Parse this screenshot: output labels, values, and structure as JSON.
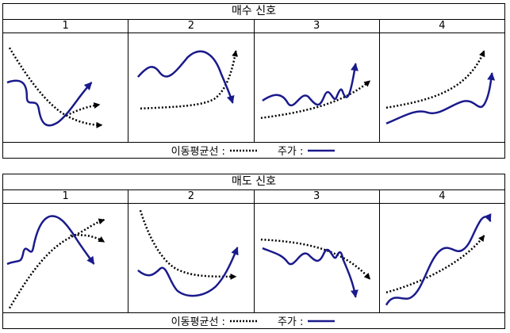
{
  "buy": {
    "title": "매수 신호",
    "columns": [
      "1",
      "2",
      "3",
      "4"
    ],
    "legend": {
      "ma_label": "이동평균선 :",
      "price_label": "주가 :"
    }
  },
  "sell": {
    "title": "매도 신호",
    "columns": [
      "1",
      "2",
      "3",
      "4"
    ],
    "legend": {
      "ma_label": "이동평균선 :",
      "price_label": "주가 :"
    }
  },
  "colors": {
    "price": "#1a1a8c",
    "moving_average": "#000000"
  }
}
